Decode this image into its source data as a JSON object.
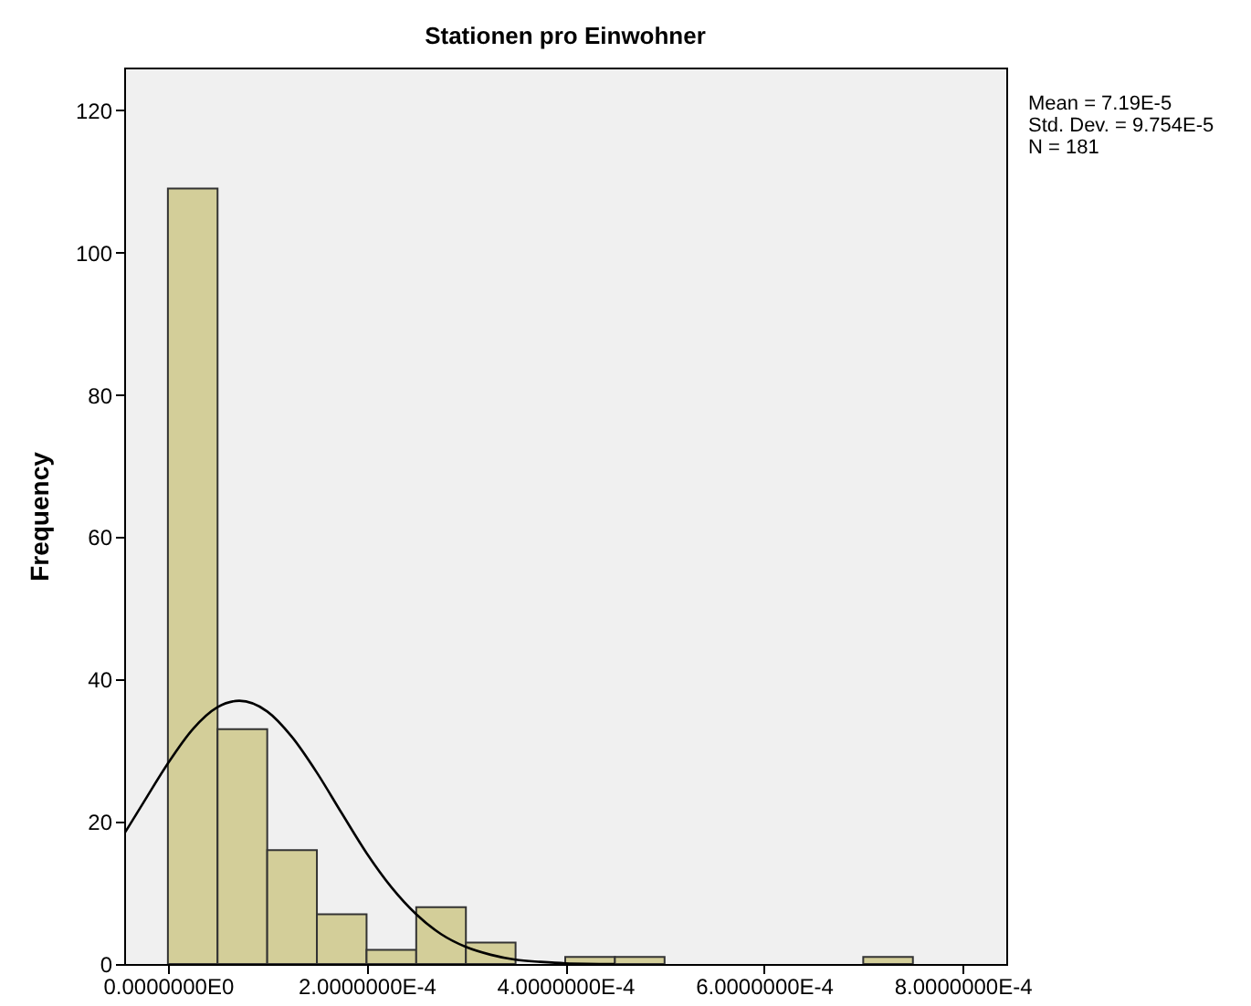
{
  "chart_data": {
    "type": "histogram",
    "title": "Stationen pro Einwohner",
    "ylabel": "Frequency",
    "annotations": [
      "Mean = 7.19E-5",
      "Std. Dev. = 9.754E-5",
      "N = 181"
    ],
    "bins": [
      0,
      5e-05,
      0.0001,
      0.00015,
      0.0002,
      0.00025,
      0.0003,
      0.00035,
      0.0004,
      0.00045,
      0.0005,
      0.00055,
      0.0006,
      0.00065,
      0.0007,
      0.00075
    ],
    "values": [
      109,
      33,
      16,
      7,
      2,
      8,
      3,
      0,
      1,
      1,
      0,
      0,
      0,
      0,
      1
    ],
    "color": "#d3ce99",
    "series": [
      {
        "type": "line",
        "color": "#000000",
        "x": [
          -4.4e-05,
          -2.5e-05,
          0,
          2.5e-05,
          5e-05,
          7.19e-05,
          0.0001,
          0.000125,
          0.00015,
          0.000175,
          0.0002,
          0.000225,
          0.00025,
          0.000275,
          0.0003,
          0.000325,
          0.00035,
          0.000375,
          0.0004,
          0.00045
        ],
        "values": [
          18.3,
          22.6,
          28.2,
          33.0,
          36.1,
          37.0,
          35.5,
          31.9,
          26.9,
          21.2,
          15.6,
          10.8,
          7.0,
          4.2,
          2.4,
          1.3,
          0.6,
          0.3,
          0.1,
          0
        ]
      }
    ],
    "xlim": [
      -4.4e-05,
      0.000844
    ],
    "xticks": [
      {
        "value": 0,
        "label": "0.0000000E0"
      },
      {
        "value": 0.0002,
        "label": "2.0000000E-4"
      },
      {
        "value": 0.0004,
        "label": "4.0000000E-4"
      },
      {
        "value": 0.0006,
        "label": "6.0000000E-4"
      },
      {
        "value": 0.0008,
        "label": "8.0000000E-4"
      }
    ],
    "ylim": [
      0,
      126
    ],
    "yticks": [
      0,
      20,
      40,
      60,
      80,
      100,
      120
    ],
    "grid": false
  }
}
